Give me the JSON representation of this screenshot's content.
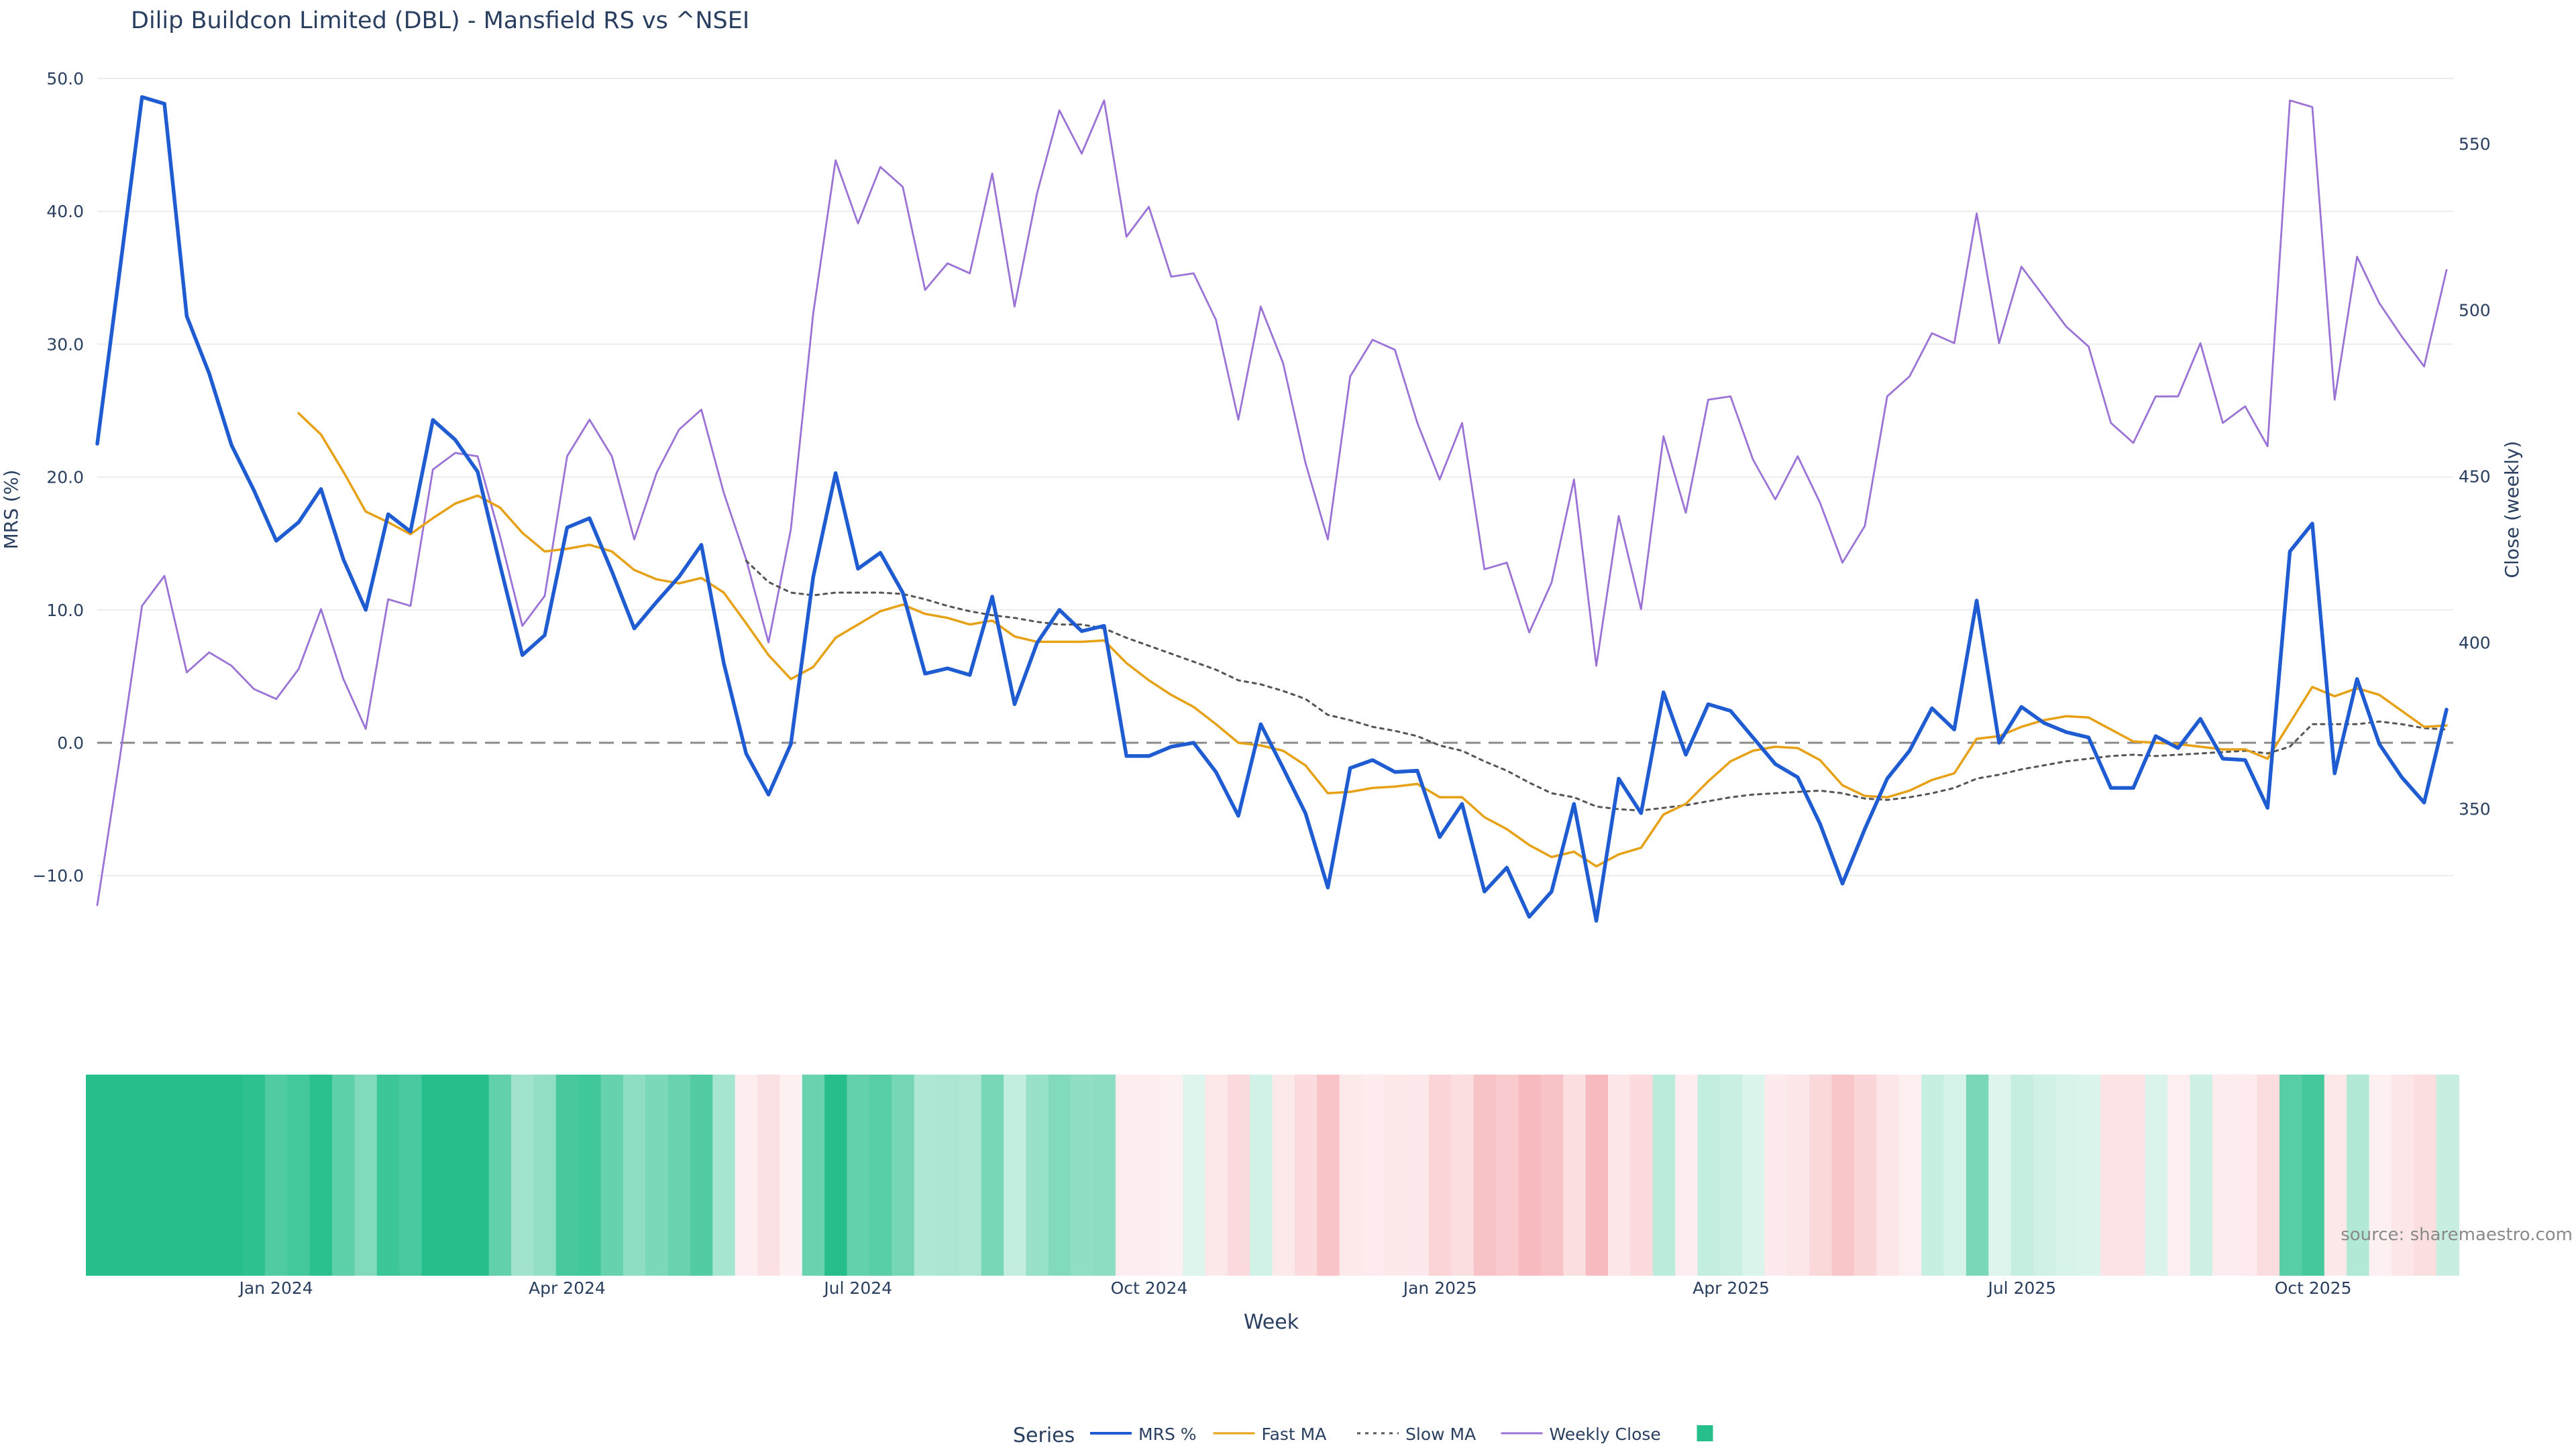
{
  "chart_data": {
    "type": "line",
    "title": "Dilip Buildcon Limited (DBL) - Mansfield RS vs ^NSEI",
    "xlabel": "Week",
    "ylabel": "MRS (%)",
    "y2label": "Close (weekly)",
    "ylim": [
      -15,
      50
    ],
    "y2lim": [
      315,
      569
    ],
    "yticks": [
      -10,
      0,
      10,
      20,
      30,
      40,
      50
    ],
    "yticklabels": [
      "−10.0",
      "0.0",
      "10.0",
      "20.0",
      "30.0",
      "40.0",
      "50.0"
    ],
    "y2ticks": [
      350,
      400,
      450,
      500,
      550
    ],
    "xticks": [
      "Jan 2024",
      "Apr 2024",
      "Jul 2024",
      "Oct 2024",
      "Jan 2025",
      "Apr 2025",
      "Jul 2025",
      "Oct 2025"
    ],
    "xtick_weeks": [
      8.5,
      21.5,
      34.5,
      47.5,
      60.5,
      73.5,
      86.5,
      99.5
    ],
    "grid": true,
    "zero_line": "dashed",
    "legend_title": "Series",
    "legend_position": "bottom-center",
    "annotation": "source: sharemaestro.com",
    "colors": {
      "mrs": "#1f5bd1",
      "fast_ma": "#e6a117",
      "slow_ma": "#555555",
      "weekly_close": "#9b72d6",
      "heat_positive": "#26bf8c",
      "heat_negative": "#f4a0a6"
    },
    "heatmap_strip": {
      "encoding": "MRS % per week (green = positive, red = negative)"
    },
    "series": [
      {
        "name": "MRS %",
        "axis": "left",
        "style": "solid-thick",
        "values": [
          22.5,
          35.5,
          48.6,
          48.1,
          32.1,
          27.8,
          22.4,
          19.0,
          15.2,
          16.6,
          19.1,
          13.8,
          10.0,
          17.2,
          15.9,
          24.3,
          22.8,
          20.4,
          13.4,
          6.6,
          8.1,
          16.2,
          16.9,
          12.9,
          8.6,
          10.6,
          12.5,
          14.9,
          6.0,
          -0.8,
          -3.9,
          -0.1,
          12.5,
          20.3,
          13.1,
          14.3,
          11.3,
          5.2,
          5.6,
          5.1,
          11.0,
          2.9,
          7.5,
          10.0,
          8.4,
          8.8,
          -1.0,
          -1.0,
          -0.3,
          0.0,
          -2.2,
          -5.5,
          1.4,
          -1.9,
          -5.3,
          -10.9,
          -1.9,
          -1.3,
          -2.2,
          -2.1,
          -7.1,
          -4.6,
          -11.2,
          -9.4,
          -13.1,
          -11.2,
          -4.6,
          -13.4,
          -2.7,
          -5.3,
          3.8,
          -0.9,
          2.9,
          2.4,
          0.4,
          -1.6,
          -2.6,
          -6.1,
          -10.6,
          -6.5,
          -2.7,
          -0.6,
          2.6,
          1.0,
          10.7,
          0.0,
          2.7,
          1.5,
          0.8,
          0.4,
          -3.4,
          -3.4,
          0.5,
          -0.4,
          1.8,
          -1.2,
          -1.3,
          -4.9,
          14.4,
          16.5,
          -2.3,
          4.8,
          -0.1,
          -2.6,
          -4.5,
          2.5
        ]
      },
      {
        "name": "Fast MA",
        "axis": "left",
        "style": "solid",
        "values": [
          null,
          null,
          null,
          null,
          null,
          null,
          null,
          null,
          null,
          24.8,
          23.2,
          20.4,
          17.4,
          16.6,
          15.7,
          16.9,
          18.0,
          18.6,
          17.7,
          15.8,
          14.4,
          14.6,
          14.9,
          14.4,
          13.0,
          12.3,
          12.0,
          12.4,
          11.3,
          9.0,
          6.6,
          4.8,
          5.7,
          7.9,
          8.9,
          9.9,
          10.4,
          9.7,
          9.4,
          8.9,
          9.2,
          8.0,
          7.6,
          7.6,
          7.6,
          7.7,
          6.0,
          4.7,
          3.6,
          2.7,
          1.4,
          0.0,
          -0.2,
          -0.6,
          -1.7,
          -3.8,
          -3.7,
          -3.4,
          -3.3,
          -3.1,
          -4.1,
          -4.1,
          -5.6,
          -6.5,
          -7.7,
          -8.6,
          -8.2,
          -9.3,
          -8.4,
          -7.9,
          -5.4,
          -4.6,
          -2.9,
          -1.4,
          -0.6,
          -0.3,
          -0.4,
          -1.3,
          -3.2,
          -4.0,
          -4.1,
          -3.6,
          -2.8,
          -2.3,
          0.3,
          0.5,
          1.2,
          1.7,
          2.0,
          1.9,
          1.0,
          0.1,
          0.0,
          -0.1,
          -0.3,
          -0.5,
          -0.5,
          -1.2,
          1.5,
          4.2,
          3.5,
          4.1,
          3.6,
          2.4,
          1.2,
          1.3
        ]
      },
      {
        "name": "Slow MA",
        "axis": "left",
        "style": "dotted",
        "values": [
          null,
          null,
          null,
          null,
          null,
          null,
          null,
          null,
          null,
          null,
          null,
          null,
          null,
          null,
          null,
          null,
          null,
          null,
          null,
          null,
          null,
          null,
          null,
          null,
          null,
          null,
          null,
          null,
          null,
          13.7,
          12.1,
          11.3,
          11.1,
          11.3,
          11.3,
          11.3,
          11.2,
          10.8,
          10.3,
          9.9,
          9.6,
          9.4,
          9.1,
          8.9,
          8.9,
          8.6,
          7.9,
          7.3,
          6.7,
          6.1,
          5.5,
          4.7,
          4.4,
          3.9,
          3.3,
          2.1,
          1.7,
          1.2,
          0.9,
          0.5,
          -0.2,
          -0.6,
          -1.4,
          -2.1,
          -3.0,
          -3.8,
          -4.1,
          -4.8,
          -5.0,
          -5.1,
          -4.9,
          -4.7,
          -4.4,
          -4.1,
          -3.9,
          -3.8,
          -3.7,
          -3.6,
          -3.8,
          -4.2,
          -4.3,
          -4.1,
          -3.8,
          -3.4,
          -2.7,
          -2.4,
          -2.0,
          -1.7,
          -1.4,
          -1.2,
          -1.0,
          -0.9,
          -1.0,
          -0.9,
          -0.8,
          -0.7,
          -0.6,
          -0.8,
          -0.3,
          1.4,
          1.4,
          1.4,
          1.6,
          1.4,
          1.1,
          1.0
        ]
      },
      {
        "name": "Weekly Close",
        "axis": "right",
        "style": "thin",
        "values": [
          321,
          365,
          411,
          420,
          391,
          397,
          393,
          386,
          383,
          392,
          410,
          389,
          374,
          413,
          411,
          452,
          457,
          456,
          432,
          405,
          414,
          456,
          467,
          456,
          431,
          451,
          464,
          470,
          445,
          425,
          400,
          434,
          499,
          545,
          526,
          543,
          537,
          506,
          514,
          511,
          541,
          501,
          535,
          560,
          547,
          563,
          522,
          531,
          510,
          511,
          497,
          467,
          501,
          484,
          454,
          431,
          480,
          491,
          488,
          466,
          449,
          466,
          422,
          424,
          403,
          418,
          449,
          393,
          438,
          410,
          462,
          439,
          473,
          474,
          455,
          443,
          456,
          442,
          424,
          435,
          474,
          480,
          493,
          490,
          529,
          490,
          513,
          504,
          495,
          489,
          466,
          460,
          474,
          474,
          490,
          466,
          471,
          459,
          563,
          561,
          473,
          516,
          502,
          492,
          483,
          512
        ]
      }
    ]
  }
}
